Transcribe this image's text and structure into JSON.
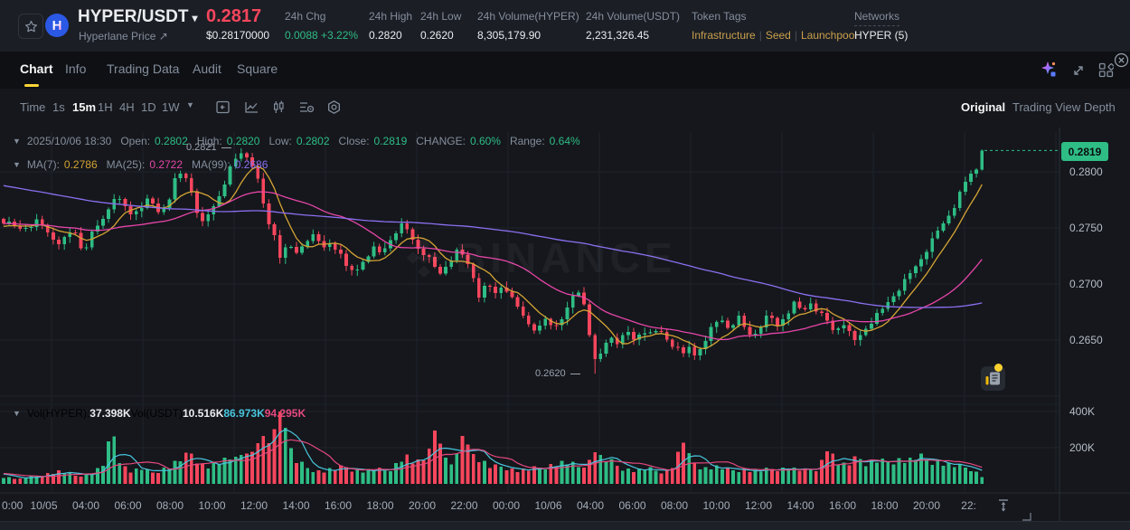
{
  "header": {
    "symbol": "HYPER/USDT",
    "dropdown_caret": "▾",
    "subtitle": "Hyperlane Price",
    "external_arrow": "↗",
    "price": "0.2817",
    "price_usd": "$0.28170000",
    "stats": [
      {
        "label": "24h Chg",
        "value": "0.0088 +3.22%",
        "color": "#2ebd85"
      },
      {
        "label": "24h High",
        "value": "0.2820"
      },
      {
        "label": "24h Low",
        "value": "0.2620"
      },
      {
        "label": "24h Volume(HYPER)",
        "value": "8,305,179.90"
      },
      {
        "label": "24h Volume(USDT)",
        "value": "2,231,326.45"
      }
    ],
    "token_tags_label": "Token Tags",
    "token_tags": [
      "Infrastructure",
      "Seed",
      "Launchpool"
    ],
    "networks_label": "Networks",
    "networks_value": "HYPER (5)"
  },
  "tabs": [
    {
      "label": "Chart",
      "active": true
    },
    {
      "label": "Info",
      "active": false
    },
    {
      "label": "Trading Data",
      "active": false
    },
    {
      "label": "Audit",
      "active": false
    },
    {
      "label": "Square",
      "active": false
    }
  ],
  "toolbar": {
    "intervals": [
      {
        "label": "Time",
        "active": false
      },
      {
        "label": "1s",
        "active": false
      },
      {
        "label": "15m",
        "active": true
      },
      {
        "label": "1H",
        "active": false
      },
      {
        "label": "4H",
        "active": false
      },
      {
        "label": "1D",
        "active": false
      },
      {
        "label": "1W",
        "active": false
      }
    ],
    "views": [
      {
        "label": "Original",
        "active": true
      },
      {
        "label": "Trading View",
        "active": false
      },
      {
        "label": "Depth",
        "active": false
      }
    ]
  },
  "watermark": "BINANCE",
  "chart_data": {
    "type": "candlestick",
    "symbol": "HYPER/USDT",
    "interval": "15m",
    "legend": {
      "date": "2025/10/06 18:30",
      "items": [
        {
          "label": "Open:",
          "value": "0.2802"
        },
        {
          "label": "High:",
          "value": "0.2820"
        },
        {
          "label": "Low:",
          "value": "0.2802"
        },
        {
          "label": "Close:",
          "value": "0.2819"
        },
        {
          "label": "CHANGE:",
          "value": "0.60%"
        },
        {
          "label": "Range:",
          "value": "0.64%"
        }
      ]
    },
    "ma_legend": [
      {
        "label": "MA(7):",
        "value": "0.2786",
        "color": "#d5a434"
      },
      {
        "label": "MA(25):",
        "value": "0.2722",
        "color": "#e645a8"
      },
      {
        "label": "MA(99):",
        "value": "0.2686",
        "color": "#8c6ff0"
      }
    ],
    "vol_legend": [
      {
        "label": "Vol(HYPER):",
        "value": "37.398K",
        "color": "#eaecef"
      },
      {
        "label": "Vol(USDT)",
        "value": "10.516K",
        "color": "#eaecef"
      },
      {
        "label": "",
        "value": "86.973K",
        "color": "#49c6de"
      },
      {
        "label": "",
        "value": "94.295K",
        "color": "#e5487e"
      }
    ],
    "price_axis": [
      {
        "label": "0.2800",
        "price": 0.28
      },
      {
        "label": "0.2750",
        "price": 0.275
      },
      {
        "label": "0.2700",
        "price": 0.27
      },
      {
        "label": "0.2650",
        "price": 0.265
      }
    ],
    "vol_axis": [
      {
        "label": "400K",
        "value": 400
      },
      {
        "label": "200K",
        "value": 200
      }
    ],
    "time_axis": [
      "0:00",
      "10/05",
      "04:00",
      "06:00",
      "08:00",
      "10:00",
      "12:00",
      "14:00",
      "16:00",
      "18:00",
      "20:00",
      "22:00",
      "00:00",
      "10/06",
      "04:00",
      "06:00",
      "08:00",
      "10:00",
      "12:00",
      "14:00",
      "16:00",
      "18:00",
      "20:00",
      "22:"
    ],
    "last_price": {
      "label": "0.2819",
      "value": 0.2819
    },
    "high_annotation": {
      "label": "0.2821",
      "value": 0.2821
    },
    "low_annotation": {
      "label": "0.2620",
      "value": 0.262
    },
    "num_candles": 178,
    "close_keyframes": [
      [
        0,
        0.2757
      ],
      [
        0.015,
        0.2749
      ],
      [
        0.035,
        0.2756
      ],
      [
        0.051,
        0.2741
      ],
      [
        0.059,
        0.2737
      ],
      [
        0.072,
        0.2749
      ],
      [
        0.081,
        0.2729
      ],
      [
        0.09,
        0.2744
      ],
      [
        0.101,
        0.2757
      ],
      [
        0.106,
        0.2765
      ],
      [
        0.112,
        0.2779
      ],
      [
        0.122,
        0.2771
      ],
      [
        0.13,
        0.2762
      ],
      [
        0.141,
        0.277
      ],
      [
        0.149,
        0.2775
      ],
      [
        0.159,
        0.2763
      ],
      [
        0.168,
        0.2774
      ],
      [
        0.176,
        0.2794
      ],
      [
        0.184,
        0.2799
      ],
      [
        0.192,
        0.2784
      ],
      [
        0.202,
        0.2752
      ],
      [
        0.211,
        0.2763
      ],
      [
        0.222,
        0.2782
      ],
      [
        0.23,
        0.28
      ],
      [
        0.237,
        0.281
      ],
      [
        0.2445,
        0.2818
      ],
      [
        0.254,
        0.2808
      ],
      [
        0.262,
        0.2785
      ],
      [
        0.269,
        0.2756
      ],
      [
        0.277,
        0.2744
      ],
      [
        0.284,
        0.272
      ],
      [
        0.29,
        0.2734
      ],
      [
        0.3,
        0.2727
      ],
      [
        0.309,
        0.274
      ],
      [
        0.318,
        0.2742
      ],
      [
        0.326,
        0.2731
      ],
      [
        0.335,
        0.2738
      ],
      [
        0.343,
        0.2727
      ],
      [
        0.351,
        0.2713
      ],
      [
        0.36,
        0.2711
      ],
      [
        0.369,
        0.2724
      ],
      [
        0.378,
        0.2732
      ],
      [
        0.386,
        0.2726
      ],
      [
        0.394,
        0.2739
      ],
      [
        0.405,
        0.2753
      ],
      [
        0.414,
        0.2747
      ],
      [
        0.421,
        0.2735
      ],
      [
        0.43,
        0.2728
      ],
      [
        0.4375,
        0.2719
      ],
      [
        0.445,
        0.2708
      ],
      [
        0.453,
        0.2718
      ],
      [
        0.462,
        0.2729
      ],
      [
        0.471,
        0.2724
      ],
      [
        0.479,
        0.271
      ],
      [
        0.486,
        0.269
      ],
      [
        0.494,
        0.2699
      ],
      [
        0.503,
        0.2692
      ],
      [
        0.511,
        0.2701
      ],
      [
        0.519,
        0.2687
      ],
      [
        0.528,
        0.2675
      ],
      [
        0.537,
        0.2665
      ],
      [
        0.546,
        0.2658
      ],
      [
        0.554,
        0.2668
      ],
      [
        0.562,
        0.2661
      ],
      [
        0.57,
        0.267
      ],
      [
        0.578,
        0.2678
      ],
      [
        0.585,
        0.2696
      ],
      [
        0.593,
        0.2684
      ],
      [
        0.599,
        0.2656
      ],
      [
        0.6057,
        0.2625
      ],
      [
        0.612,
        0.2641
      ],
      [
        0.62,
        0.2654
      ],
      [
        0.629,
        0.2647
      ],
      [
        0.637,
        0.2657
      ],
      [
        0.645,
        0.2649
      ],
      [
        0.653,
        0.266
      ],
      [
        0.662,
        0.2653
      ],
      [
        0.67,
        0.2659
      ],
      [
        0.679,
        0.265
      ],
      [
        0.687,
        0.2643
      ],
      [
        0.694,
        0.2635
      ],
      [
        0.7,
        0.2644
      ],
      [
        0.707,
        0.2636
      ],
      [
        0.716,
        0.265
      ],
      [
        0.724,
        0.2661
      ],
      [
        0.733,
        0.2669
      ],
      [
        0.742,
        0.2661
      ],
      [
        0.75,
        0.2672
      ],
      [
        0.757,
        0.2661
      ],
      [
        0.765,
        0.2653
      ],
      [
        0.774,
        0.2664
      ],
      [
        0.782,
        0.2672
      ],
      [
        0.791,
        0.2663
      ],
      [
        0.8,
        0.2674
      ],
      [
        0.808,
        0.2682
      ],
      [
        0.817,
        0.2675
      ],
      [
        0.825,
        0.2684
      ],
      [
        0.835,
        0.2673
      ],
      [
        0.843,
        0.2665
      ],
      [
        0.849,
        0.2657
      ],
      [
        0.858,
        0.2667
      ],
      [
        0.866,
        0.2653
      ],
      [
        0.871,
        0.2648
      ],
      [
        0.88,
        0.266
      ],
      [
        0.888,
        0.2668
      ],
      [
        0.897,
        0.2675
      ],
      [
        0.905,
        0.2685
      ],
      [
        0.914,
        0.2695
      ],
      [
        0.923,
        0.2704
      ],
      [
        0.931,
        0.2714
      ],
      [
        0.94,
        0.2726
      ],
      [
        0.949,
        0.2738
      ],
      [
        0.957,
        0.2749
      ],
      [
        0.965,
        0.276
      ],
      [
        0.974,
        0.2773
      ],
      [
        0.982,
        0.2788
      ],
      [
        0.989,
        0.2799
      ],
      [
        0.9935,
        0.2802
      ],
      [
        1,
        0.2819
      ]
    ],
    "volume_keyframes": [
      [
        0,
        42
      ],
      [
        0.017,
        28
      ],
      [
        0.042,
        55
      ],
      [
        0.059,
        72
      ],
      [
        0.074,
        45
      ],
      [
        0.088,
        58
      ],
      [
        0.101,
        95
      ],
      [
        0.107,
        230
      ],
      [
        0.112,
        285
      ],
      [
        0.118,
        150
      ],
      [
        0.127,
        70
      ],
      [
        0.141,
        85
      ],
      [
        0.151,
        60
      ],
      [
        0.168,
        95
      ],
      [
        0.182,
        140
      ],
      [
        0.188,
        185
      ],
      [
        0.196,
        150
      ],
      [
        0.206,
        95
      ],
      [
        0.219,
        115
      ],
      [
        0.23,
        135
      ],
      [
        0.239,
        155
      ],
      [
        0.254,
        175
      ],
      [
        0.265,
        270
      ],
      [
        0.272,
        220
      ],
      [
        0.284,
        425
      ],
      [
        0.29,
        260
      ],
      [
        0.298,
        130
      ],
      [
        0.311,
        90
      ],
      [
        0.324,
        70
      ],
      [
        0.338,
        85
      ],
      [
        0.351,
        95
      ],
      [
        0.364,
        70
      ],
      [
        0.378,
        80
      ],
      [
        0.392,
        75
      ],
      [
        0.401,
        110
      ],
      [
        0.41,
        160
      ],
      [
        0.421,
        110
      ],
      [
        0.432,
        140
      ],
      [
        0.442,
        320
      ],
      [
        0.45,
        140
      ],
      [
        0.46,
        110
      ],
      [
        0.47,
        285
      ],
      [
        0.477,
        180
      ],
      [
        0.488,
        130
      ],
      [
        0.499,
        90
      ],
      [
        0.511,
        100
      ],
      [
        0.524,
        75
      ],
      [
        0.537,
        80
      ],
      [
        0.55,
        95
      ],
      [
        0.562,
        110
      ],
      [
        0.575,
        120
      ],
      [
        0.588,
        95
      ],
      [
        0.599,
        130
      ],
      [
        0.6057,
        185
      ],
      [
        0.612,
        150
      ],
      [
        0.62,
        125
      ],
      [
        0.632,
        90
      ],
      [
        0.645,
        75
      ],
      [
        0.658,
        85
      ],
      [
        0.67,
        70
      ],
      [
        0.682,
        80
      ],
      [
        0.694,
        240
      ],
      [
        0.702,
        130
      ],
      [
        0.715,
        90
      ],
      [
        0.729,
        95
      ],
      [
        0.742,
        75
      ],
      [
        0.755,
        85
      ],
      [
        0.768,
        70
      ],
      [
        0.78,
        80
      ],
      [
        0.793,
        90
      ],
      [
        0.806,
        85
      ],
      [
        0.819,
        75
      ],
      [
        0.832,
        90
      ],
      [
        0.844,
        200
      ],
      [
        0.853,
        115
      ],
      [
        0.863,
        95
      ],
      [
        0.871,
        160
      ],
      [
        0.88,
        110
      ],
      [
        0.89,
        130
      ],
      [
        0.902,
        120
      ],
      [
        0.913,
        140
      ],
      [
        0.924,
        130
      ],
      [
        0.935,
        150
      ],
      [
        0.946,
        135
      ],
      [
        0.957,
        120
      ],
      [
        0.968,
        105
      ],
      [
        0.979,
        95
      ],
      [
        0.99,
        88
      ],
      [
        1,
        37
      ]
    ],
    "pre_close_keyframes": [
      [
        0,
        0.284
      ],
      [
        0.4,
        0.28
      ],
      [
        0.7,
        0.276
      ],
      [
        1,
        0.275
      ]
    ],
    "colors": {
      "up": "#2ebd85",
      "down": "#f6465d",
      "ma7": "#d5a434",
      "ma25": "#e645a8",
      "ma99": "#8c6ff0",
      "vol_ma_fast": "#49c6de",
      "vol_ma_slow": "#e5487e",
      "badge_bg": "#2ebd85",
      "grid": "#1f232b"
    }
  }
}
